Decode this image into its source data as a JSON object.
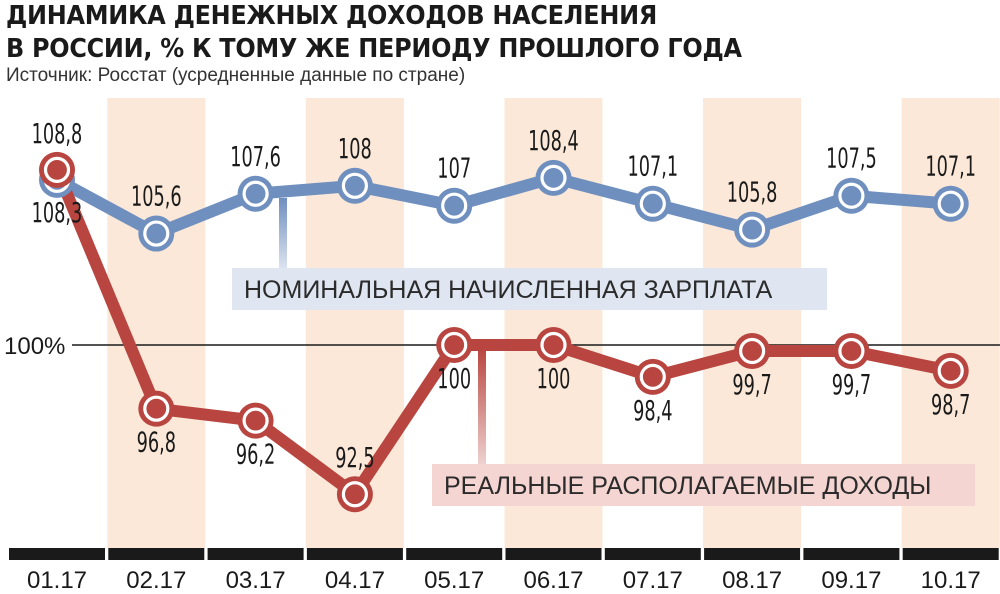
{
  "title_line1": "ДИНАМИКА ДЕНЕЖНЫХ ДОХОДОВ НАСЕЛЕНИЯ",
  "title_line2": "В РОССИИ, % К ТОМУ ЖЕ ПЕРИОДУ ПРОШЛОГО ГОДА",
  "source": "Источник: Росстат (усредненные данные по стране)",
  "chart_data": {
    "type": "line",
    "categories": [
      "01.17",
      "02.17",
      "03.17",
      "04.17",
      "05.17",
      "06.17",
      "07.17",
      "08.17",
      "09.17",
      "10.17"
    ],
    "reference_line": {
      "value": 100,
      "label": "100%"
    },
    "series": [
      {
        "name": "НОМИНАЛЬНАЯ НАЧИСЛЕННАЯ ЗАРПЛАТА",
        "color": "#6f8fbf",
        "values": [
          108.3,
          105.6,
          107.6,
          108,
          107,
          108.4,
          107.1,
          105.8,
          107.5,
          107.1
        ],
        "labels": [
          "108,3",
          "105,6",
          "107,6",
          "108",
          "107",
          "108,4",
          "107,1",
          "105,8",
          "107,5",
          "107,1"
        ]
      },
      {
        "name": "РЕАЛЬНЫЕ РАСПОЛАГАЕМЫЕ ДОХОДЫ",
        "color": "#b8453f",
        "values": [
          108.8,
          96.8,
          96.2,
          92.5,
          100,
          100,
          98.4,
          99.7,
          99.7,
          98.7
        ],
        "labels": [
          "108,8",
          "96,8",
          "96,2",
          "92,5",
          "100",
          "100",
          "98,4",
          "99,7",
          "99,7",
          "98,7"
        ]
      }
    ],
    "band_color": "#fbe8d8",
    "label_box_colors": {
      "nominal": "#dfe6f1",
      "real": "#f5d5d2"
    }
  }
}
